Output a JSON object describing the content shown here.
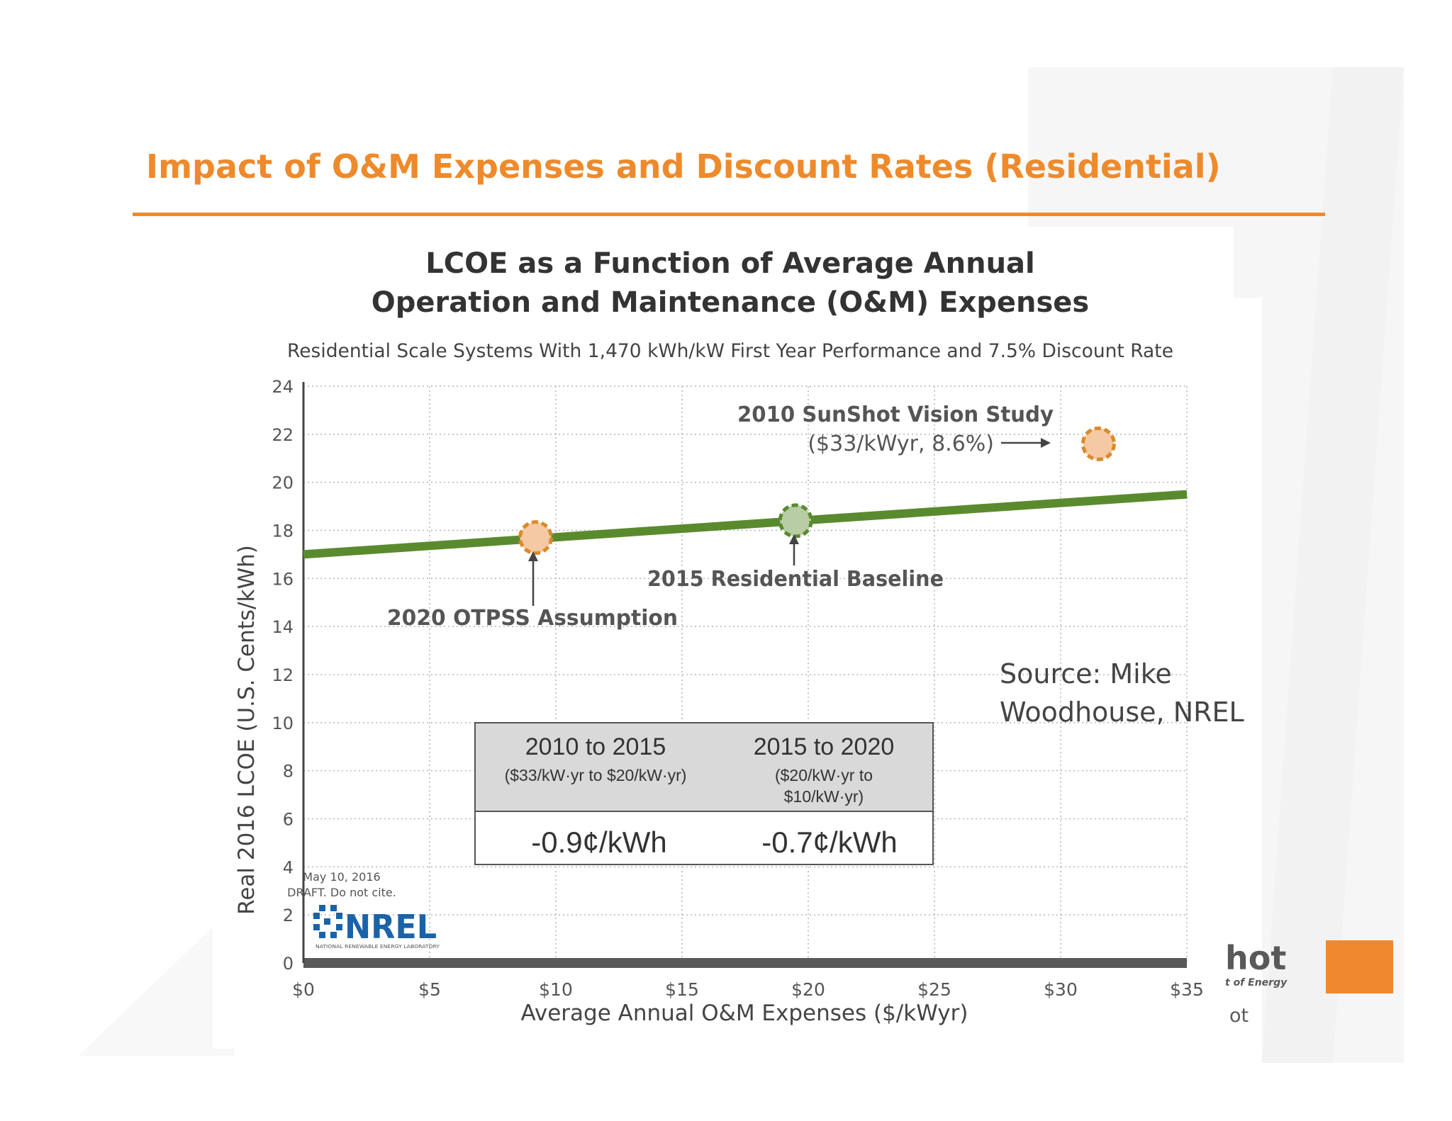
{
  "slide": {
    "title": "Impact of O&M Expenses and Discount Rates (Residential)",
    "accent_color": "#ee8a2b"
  },
  "source_note": {
    "line1": "Source: Mike",
    "line2": "Woodhouse, NREL"
  },
  "background_fragments": {
    "brand_word": "hot",
    "brand_subword": "t of Energy",
    "bottom_word": "ot",
    "brand_color": "#f0892e"
  },
  "chart_data": {
    "type": "line",
    "title_line1": "LCOE as a Function of Average Annual",
    "title_line2": "Operation and Maintenance (O&M) Expenses",
    "subtitle": "Residential Scale Systems With 1,470 kWh/kW First Year Performance and 7.5% Discount Rate",
    "xlabel": "Average Annual O&M Expenses ($/kWyr)",
    "ylabel": "Real 2016 LCOE (U.S. Cents/kWh)",
    "xlim": [
      0,
      35
    ],
    "ylim": [
      0,
      24
    ],
    "x_ticks": [
      0,
      5,
      10,
      15,
      20,
      25,
      30,
      35
    ],
    "x_tick_labels": [
      "$0",
      "$5",
      "$10",
      "$15",
      "$20",
      "$25",
      "$30",
      "$35"
    ],
    "y_ticks": [
      0,
      2,
      4,
      6,
      8,
      10,
      12,
      14,
      16,
      18,
      20,
      22,
      24
    ],
    "y_tick_labels": [
      "0",
      "2",
      "4",
      "6",
      "8",
      "10",
      "12",
      "14",
      "16",
      "18",
      "20",
      "22",
      "24"
    ],
    "grid": true,
    "series": [
      {
        "x": [
          0,
          35
        ],
        "y": [
          17.0,
          19.5
        ],
        "color": "#5a8a2e"
      }
    ],
    "points": [
      {
        "x": 9.2,
        "y": 17.7,
        "fill": "#f5c9a3",
        "stroke": "#d98a2a"
      },
      {
        "x": 19.5,
        "y": 18.4,
        "fill": "#b8cca5",
        "stroke": "#5a8a2e"
      },
      {
        "x": 31.5,
        "y": 21.6,
        "fill": "#f5c9a3",
        "stroke": "#d98a2a"
      }
    ],
    "annotations": {
      "otpss": "2020 OTPSS Assumption",
      "baseline": "2015 Residential Baseline",
      "sunshot_line1": "2010 SunShot Vision Study",
      "sunshot_line2": "($33/kWyr, 8.6%)"
    },
    "table": {
      "col1_title": "2010 to 2015",
      "col1_sub": "($33/kW·yr to $20/kW·yr)",
      "col1_value": "-0.9¢/kWh",
      "col2_title": "2015 to 2020",
      "col2_sub1": "($20/kW·yr to",
      "col2_sub2": "$10/kW·yr)",
      "col2_value": "-0.7¢/kWh"
    },
    "watermark": {
      "date": "May 10, 2016",
      "draft": "DRAFT. Do not cite.",
      "logo_text": "NREL",
      "logo_sub": "NATIONAL RENEWABLE ENERGY LABORATORY"
    }
  }
}
